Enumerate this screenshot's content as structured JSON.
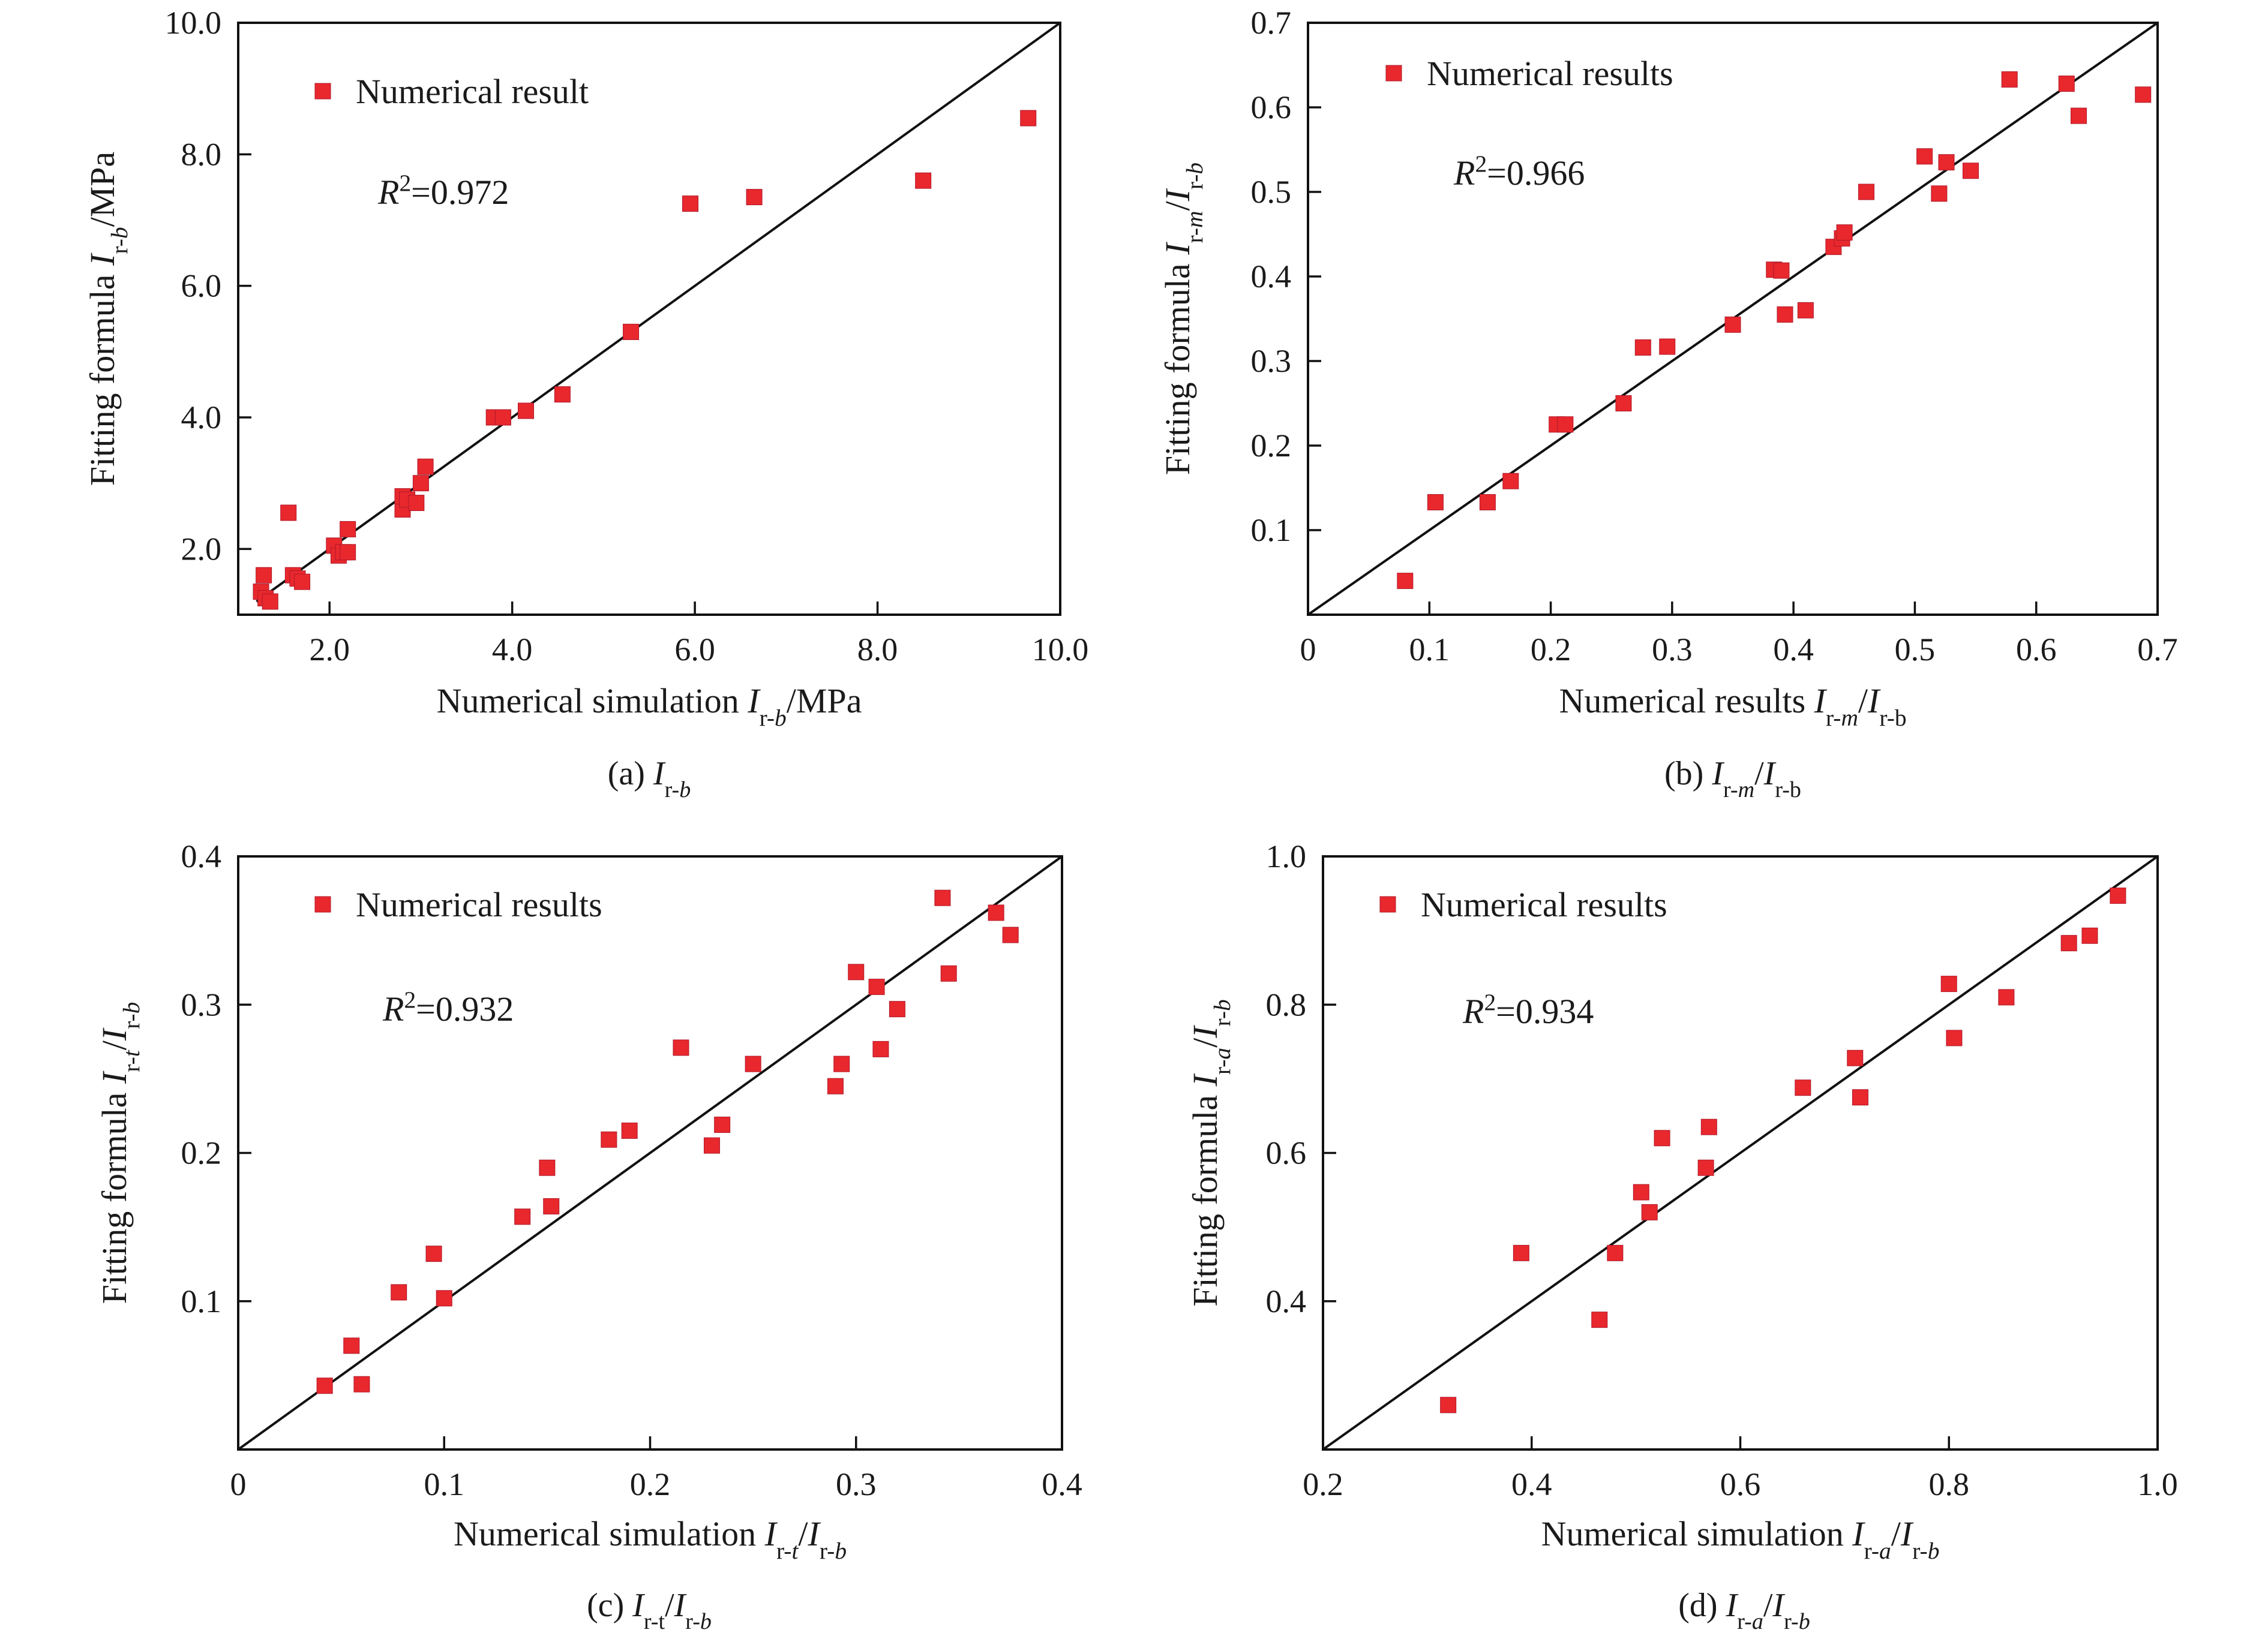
{
  "chart_data": [
    {
      "type": "scatter",
      "xlabel_parts": [
        [
          "Numerical simulation ",
          ""
        ],
        [
          "I",
          "i"
        ],
        [
          "r-",
          "sub"
        ],
        [
          "b",
          "subi"
        ],
        [
          "/MPa",
          ""
        ]
      ],
      "ylabel_parts": [
        [
          "Fitting formula ",
          ""
        ],
        [
          "I",
          "i"
        ],
        [
          "r-",
          "sub"
        ],
        [
          "b",
          "subi"
        ],
        [
          "/MPa",
          ""
        ]
      ],
      "caption_parts": [
        [
          "(a) ",
          ""
        ],
        [
          "I",
          "i"
        ],
        [
          "r-",
          "sub"
        ],
        [
          "b",
          "subi"
        ]
      ],
      "legend": "Numerical result",
      "r2_value": "=0.972",
      "xlim": [
        1.0,
        10.0
      ],
      "ylim": [
        1.0,
        10.0
      ],
      "xticks": [
        2.0,
        4.0,
        6.0,
        8.0,
        10.0
      ],
      "xtick_labels": [
        "2.0",
        "4.0",
        "6.0",
        "8.0",
        "10.0"
      ],
      "yticks": [
        2.0,
        4.0,
        6.0,
        8.0,
        10.0
      ],
      "ytick_labels": [
        "2.0",
        "4.0",
        "6.0",
        "8.0",
        "10.0"
      ],
      "series": [
        {
          "color": "#e8282d",
          "points": [
            [
              1.25,
              1.35
            ],
            [
              1.3,
              1.25
            ],
            [
              1.35,
              1.2
            ],
            [
              1.28,
              1.6
            ],
            [
              1.55,
              2.55
            ],
            [
              1.6,
              1.6
            ],
            [
              1.65,
              1.55
            ],
            [
              1.7,
              1.5
            ],
            [
              2.05,
              2.05
            ],
            [
              2.1,
              1.9
            ],
            [
              2.15,
              1.95
            ],
            [
              2.2,
              1.95
            ],
            [
              2.2,
              2.3
            ],
            [
              2.8,
              2.6
            ],
            [
              2.8,
              2.8
            ],
            [
              2.85,
              2.75
            ],
            [
              2.95,
              2.7
            ],
            [
              3.0,
              3.0
            ],
            [
              3.05,
              3.25
            ],
            [
              3.8,
              4.0
            ],
            [
              3.9,
              4.0
            ],
            [
              4.15,
              4.1
            ],
            [
              4.55,
              4.35
            ],
            [
              5.3,
              5.3
            ],
            [
              5.95,
              7.25
            ],
            [
              6.65,
              7.35
            ],
            [
              8.5,
              7.6
            ],
            [
              9.65,
              8.55
            ]
          ]
        }
      ]
    },
    {
      "type": "scatter",
      "xlabel_parts": [
        [
          "Numerical results ",
          ""
        ],
        [
          "I",
          "i"
        ],
        [
          "r-",
          "sub"
        ],
        [
          "m",
          "subi"
        ],
        [
          "/",
          ""
        ],
        [
          "I",
          "i"
        ],
        [
          "r-b",
          "sub"
        ]
      ],
      "ylabel_parts": [
        [
          "Fitting formula ",
          ""
        ],
        [
          "I",
          "i"
        ],
        [
          "r-",
          "sub"
        ],
        [
          "m",
          "subi"
        ],
        [
          "/",
          ""
        ],
        [
          "I",
          "i"
        ],
        [
          "r-",
          "sub"
        ],
        [
          "b",
          "subi"
        ]
      ],
      "caption_parts": [
        [
          "(b) ",
          ""
        ],
        [
          "I",
          "i"
        ],
        [
          "r-",
          "sub"
        ],
        [
          "m",
          "subi"
        ],
        [
          "/",
          ""
        ],
        [
          "I",
          "i"
        ],
        [
          "r-b",
          "sub"
        ]
      ],
      "legend": "Numerical results",
      "r2_value": "=0.966",
      "xlim": [
        0,
        0.7
      ],
      "ylim": [
        0,
        0.7
      ],
      "xticks": [
        0,
        0.1,
        0.2,
        0.3,
        0.4,
        0.5,
        0.6,
        0.7
      ],
      "xtick_labels": [
        "0",
        "0.1",
        "0.2",
        "0.3",
        "0.4",
        "0.5",
        "0.6",
        "0.7"
      ],
      "yticks": [
        0.1,
        0.2,
        0.3,
        0.4,
        0.5,
        0.6,
        0.7
      ],
      "ytick_labels": [
        "0.1",
        "0.2",
        "0.3",
        "0.4",
        "0.5",
        "0.6",
        "0.7"
      ],
      "series": [
        {
          "color": "#e8282d",
          "points": [
            [
              0.08,
              0.04
            ],
            [
              0.105,
              0.133
            ],
            [
              0.148,
              0.133
            ],
            [
              0.167,
              0.158
            ],
            [
              0.205,
              0.225
            ],
            [
              0.212,
              0.225
            ],
            [
              0.26,
              0.25
            ],
            [
              0.276,
              0.316
            ],
            [
              0.296,
              0.317
            ],
            [
              0.35,
              0.343
            ],
            [
              0.384,
              0.408
            ],
            [
              0.39,
              0.407
            ],
            [
              0.393,
              0.355
            ],
            [
              0.41,
              0.36
            ],
            [
              0.433,
              0.435
            ],
            [
              0.44,
              0.445
            ],
            [
              0.442,
              0.452
            ],
            [
              0.46,
              0.5
            ],
            [
              0.508,
              0.542
            ],
            [
              0.52,
              0.498
            ],
            [
              0.526,
              0.535
            ],
            [
              0.546,
              0.525
            ],
            [
              0.578,
              0.633
            ],
            [
              0.625,
              0.628
            ],
            [
              0.635,
              0.59
            ],
            [
              0.688,
              0.615
            ]
          ]
        }
      ]
    },
    {
      "type": "scatter",
      "xlabel_parts": [
        [
          "Numerical simulation ",
          ""
        ],
        [
          "I",
          "i"
        ],
        [
          "r-",
          "sub"
        ],
        [
          "t",
          "subi"
        ],
        [
          "/",
          ""
        ],
        [
          "I",
          "i"
        ],
        [
          "r-",
          "sub"
        ],
        [
          "b",
          "subi"
        ]
      ],
      "ylabel_parts": [
        [
          "Fitting formula ",
          ""
        ],
        [
          "I",
          "i"
        ],
        [
          "r-",
          "sub"
        ],
        [
          "t",
          "subi"
        ],
        [
          "/",
          ""
        ],
        [
          "I",
          "i"
        ],
        [
          "r-",
          "sub"
        ],
        [
          "b",
          "subi"
        ]
      ],
      "caption_parts": [
        [
          "(c) ",
          ""
        ],
        [
          "I",
          "i"
        ],
        [
          "r-t",
          "sub"
        ],
        [
          "/",
          ""
        ],
        [
          "I",
          "i"
        ],
        [
          "r-",
          "sub"
        ],
        [
          "b",
          "subi"
        ]
      ],
      "legend": "Numerical results",
      "r2_value": "=0.932",
      "xlim": [
        0,
        0.4
      ],
      "ylim": [
        0,
        0.4
      ],
      "xticks": [
        0,
        0.1,
        0.2,
        0.3,
        0.4
      ],
      "xtick_labels": [
        "0",
        "0.1",
        "0.2",
        "0.3",
        "0.4"
      ],
      "yticks": [
        0.1,
        0.2,
        0.3,
        0.4
      ],
      "ytick_labels": [
        "0.1",
        "0.2",
        "0.3",
        "0.4"
      ],
      "series": [
        {
          "color": "#e8282d",
          "points": [
            [
              0.042,
              0.043
            ],
            [
              0.055,
              0.07
            ],
            [
              0.06,
              0.044
            ],
            [
              0.078,
              0.106
            ],
            [
              0.095,
              0.132
            ],
            [
              0.1,
              0.102
            ],
            [
              0.138,
              0.157
            ],
            [
              0.15,
              0.19
            ],
            [
              0.152,
              0.164
            ],
            [
              0.18,
              0.209
            ],
            [
              0.19,
              0.215
            ],
            [
              0.215,
              0.271
            ],
            [
              0.23,
              0.205
            ],
            [
              0.235,
              0.219
            ],
            [
              0.25,
              0.26
            ],
            [
              0.29,
              0.245
            ],
            [
              0.293,
              0.26
            ],
            [
              0.3,
              0.322
            ],
            [
              0.31,
              0.312
            ],
            [
              0.312,
              0.27
            ],
            [
              0.32,
              0.297
            ],
            [
              0.342,
              0.372
            ],
            [
              0.345,
              0.321
            ],
            [
              0.368,
              0.362
            ],
            [
              0.375,
              0.347
            ]
          ]
        }
      ]
    },
    {
      "type": "scatter",
      "xlabel_parts": [
        [
          "Numerical simulation ",
          ""
        ],
        [
          "I",
          "i"
        ],
        [
          "r-",
          "sub"
        ],
        [
          "a",
          "subi"
        ],
        [
          "/",
          ""
        ],
        [
          "I",
          "i"
        ],
        [
          "r-",
          "sub"
        ],
        [
          "b",
          "subi"
        ]
      ],
      "ylabel_parts": [
        [
          "Fitting formula ",
          ""
        ],
        [
          "I",
          "i"
        ],
        [
          "r-",
          "sub"
        ],
        [
          "a",
          "subi"
        ],
        [
          "/",
          ""
        ],
        [
          "I",
          "i"
        ],
        [
          "r-",
          "sub"
        ],
        [
          "b",
          "subi"
        ]
      ],
      "caption_parts": [
        [
          "(d) ",
          ""
        ],
        [
          "I",
          "i"
        ],
        [
          "r-",
          "sub"
        ],
        [
          "a",
          "subi"
        ],
        [
          "/",
          ""
        ],
        [
          "I",
          "i"
        ],
        [
          "r-",
          "sub"
        ],
        [
          "b",
          "subi"
        ]
      ],
      "legend": "Numerical results",
      "r2_value": "=0.934",
      "xlim": [
        0.2,
        1.0
      ],
      "ylim": [
        0.2,
        1.0
      ],
      "xticks": [
        0.2,
        0.4,
        0.6,
        0.8,
        1.0
      ],
      "xtick_labels": [
        "0.2",
        "0.4",
        "0.6",
        "0.8",
        "1.0"
      ],
      "yticks": [
        0.4,
        0.6,
        0.8,
        1.0
      ],
      "ytick_labels": [
        "0.4",
        "0.6",
        "0.8",
        "1.0"
      ],
      "series": [
        {
          "color": "#e8282d",
          "points": [
            [
              0.32,
              0.26
            ],
            [
              0.39,
              0.465
            ],
            [
              0.465,
              0.375
            ],
            [
              0.48,
              0.465
            ],
            [
              0.505,
              0.547
            ],
            [
              0.513,
              0.52
            ],
            [
              0.525,
              0.62
            ],
            [
              0.567,
              0.58
            ],
            [
              0.57,
              0.635
            ],
            [
              0.66,
              0.688
            ],
            [
              0.71,
              0.728
            ],
            [
              0.715,
              0.675
            ],
            [
              0.8,
              0.828
            ],
            [
              0.805,
              0.755
            ],
            [
              0.855,
              0.81
            ],
            [
              0.915,
              0.883
            ],
            [
              0.935,
              0.893
            ],
            [
              0.962,
              0.947
            ]
          ]
        }
      ]
    }
  ]
}
